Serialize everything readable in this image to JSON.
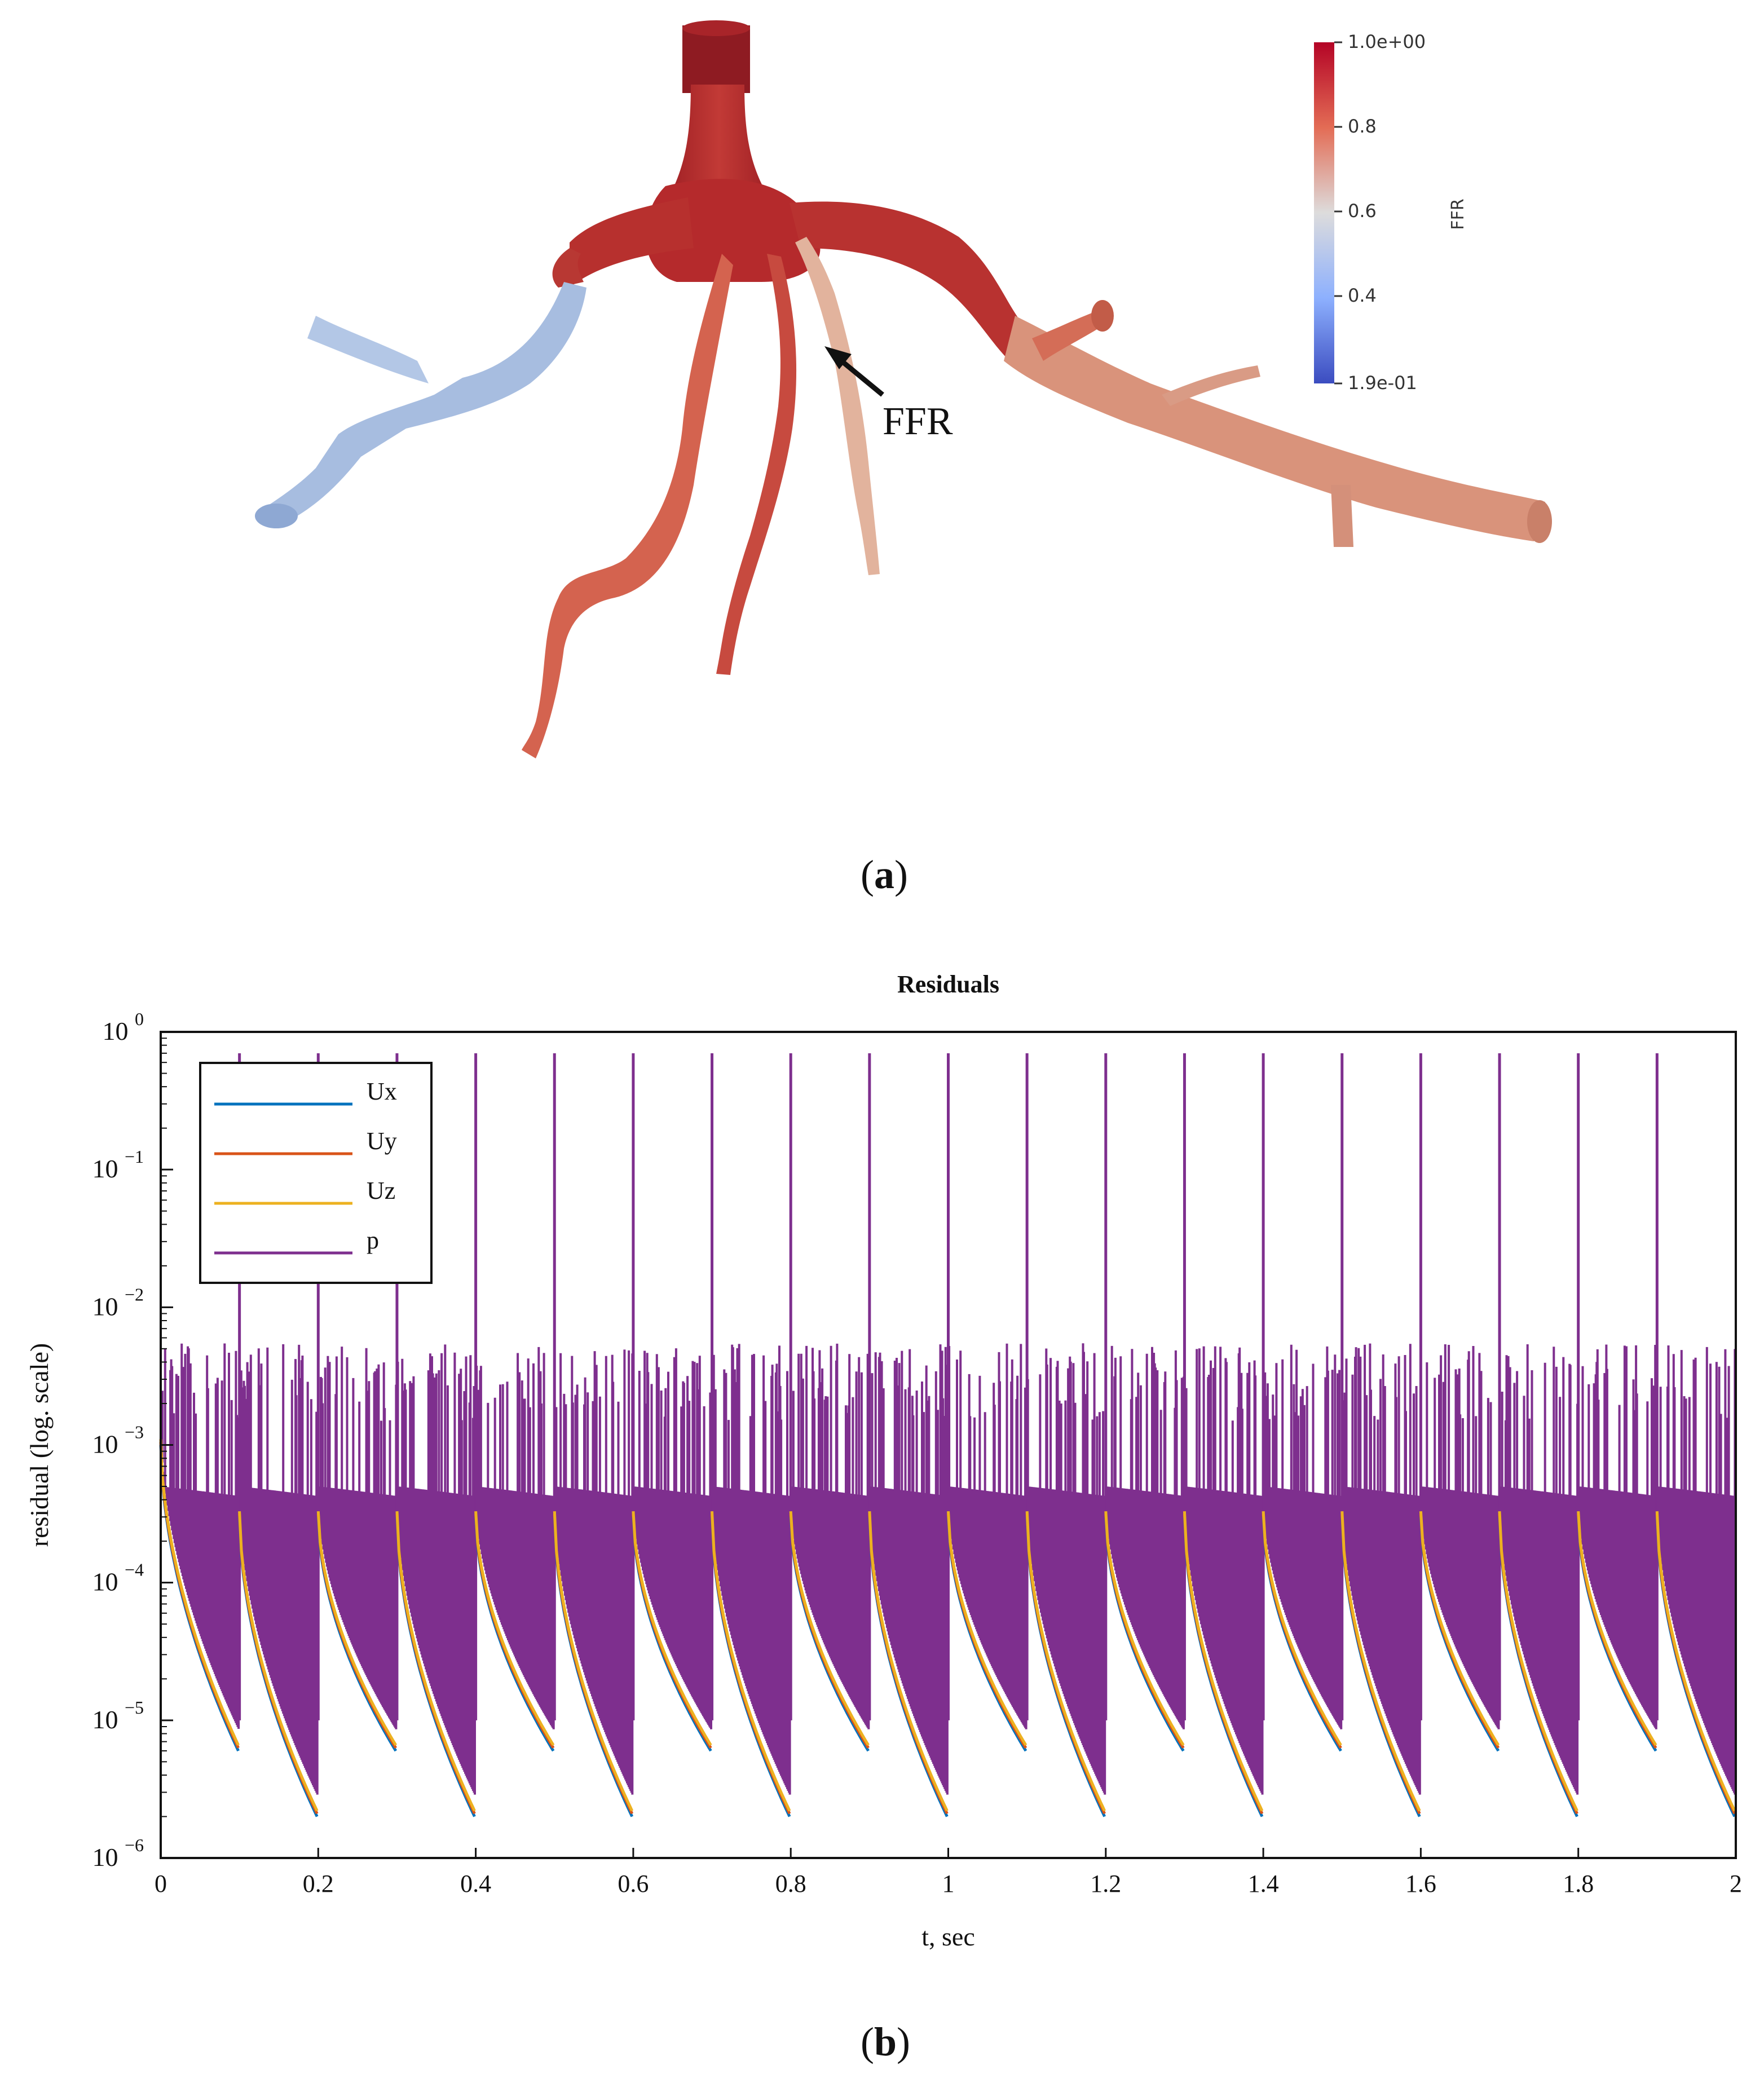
{
  "panel_a": {
    "caption_label": "a",
    "arrow_label": "FFR",
    "colorbar": {
      "title": "FFR",
      "ticks": [
        "1.0e+00",
        "0.8",
        "0.6",
        "0.4",
        "1.9e-01"
      ],
      "tick_values": [
        1.0,
        0.8,
        0.6,
        0.4,
        0.19
      ],
      "min": 0.19,
      "max": 1.0,
      "colors": [
        "#b40426",
        "#f7b89c",
        "#dddddd",
        "#9bbcff",
        "#3b4cc0"
      ]
    },
    "vessel_colors": {
      "trunk": "#b52a2c",
      "branch_left": "#a9bfe0",
      "branch_right": "#d9927a",
      "branch_mid": "#d46a52",
      "branch_pale": "#e6b59f"
    }
  },
  "panel_b": {
    "caption_label": "b",
    "chart_data": {
      "type": "line",
      "title": "Residuals",
      "xlabel": "t, sec",
      "ylabel": "residual (log. scale)",
      "xlim": [
        0,
        2
      ],
      "ylim_log10": [
        -6,
        0
      ],
      "y_scale": "log",
      "grid": false,
      "legend_position": "top-left",
      "xticks": [
        "0",
        "0.2",
        "0.4",
        "0.6",
        "0.8",
        "1",
        "1.2",
        "1.4",
        "1.6",
        "1.8",
        "2"
      ],
      "ytick_base": "10",
      "ytick_exponents": [
        "0",
        "−1",
        "−2",
        "−3",
        "−4",
        "−5",
        "−6"
      ],
      "cycle_period": 0.1,
      "cycle_starts": [
        0,
        0.1,
        0.2,
        0.3,
        0.4,
        0.5,
        0.6,
        0.7,
        0.8,
        0.9,
        1.0,
        1.1,
        1.2,
        1.3,
        1.4,
        1.5,
        1.6,
        1.7,
        1.8,
        1.9
      ],
      "series": [
        {
          "name": "Ux",
          "color": "#0072bd",
          "start_value": 0.0003,
          "end_value": 2e-06
        },
        {
          "name": "Uy",
          "color": "#d95319",
          "start_value": 0.0003,
          "end_value": 2e-06
        },
        {
          "name": "Uz",
          "color": "#edb120",
          "start_value": 0.0003,
          "end_value": 2e-06
        },
        {
          "name": "p",
          "color": "#7e2f8e",
          "peak_value": 0.7,
          "band_top": 0.0005,
          "band_bottom": 2e-06
        }
      ]
    }
  }
}
